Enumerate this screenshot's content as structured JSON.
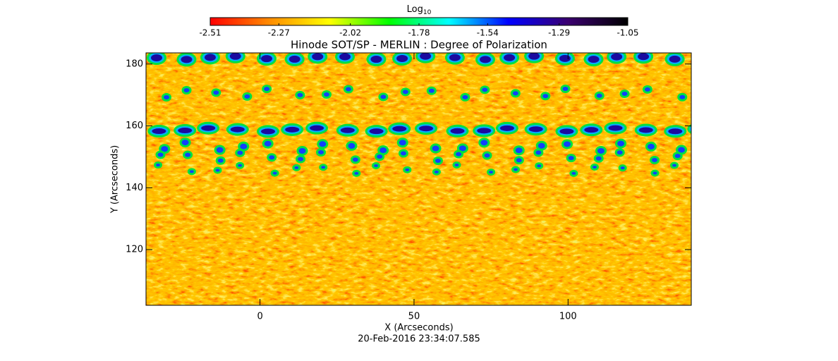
{
  "chart_data": {
    "type": "image",
    "title": "Hinode SOT/SP - MERLIN : Degree of Polarization",
    "x_label": "X (Arcseconds)",
    "y_label": "Y (Arcseconds)",
    "xlim": [
      -37,
      140
    ],
    "ylim": [
      102,
      183.6
    ],
    "xticks": [
      0,
      50,
      100
    ],
    "yticks": [
      120,
      140,
      160,
      180
    ],
    "colorbar": {
      "label": "Log",
      "label_subscript": "10",
      "lim": [
        -2.51,
        -1.05
      ],
      "ticks": [
        -2.51,
        -2.27,
        -2.02,
        -1.78,
        -1.54,
        -1.29,
        -1.05
      ],
      "colors": [
        "#ff0000",
        "#ff8c00",
        "#ffff00",
        "#00ff00",
        "#00ffff",
        "#0000ff",
        "#3a006f",
        "#000000"
      ]
    },
    "timestamp": "20-Feb-2016 23:34:07.585"
  }
}
